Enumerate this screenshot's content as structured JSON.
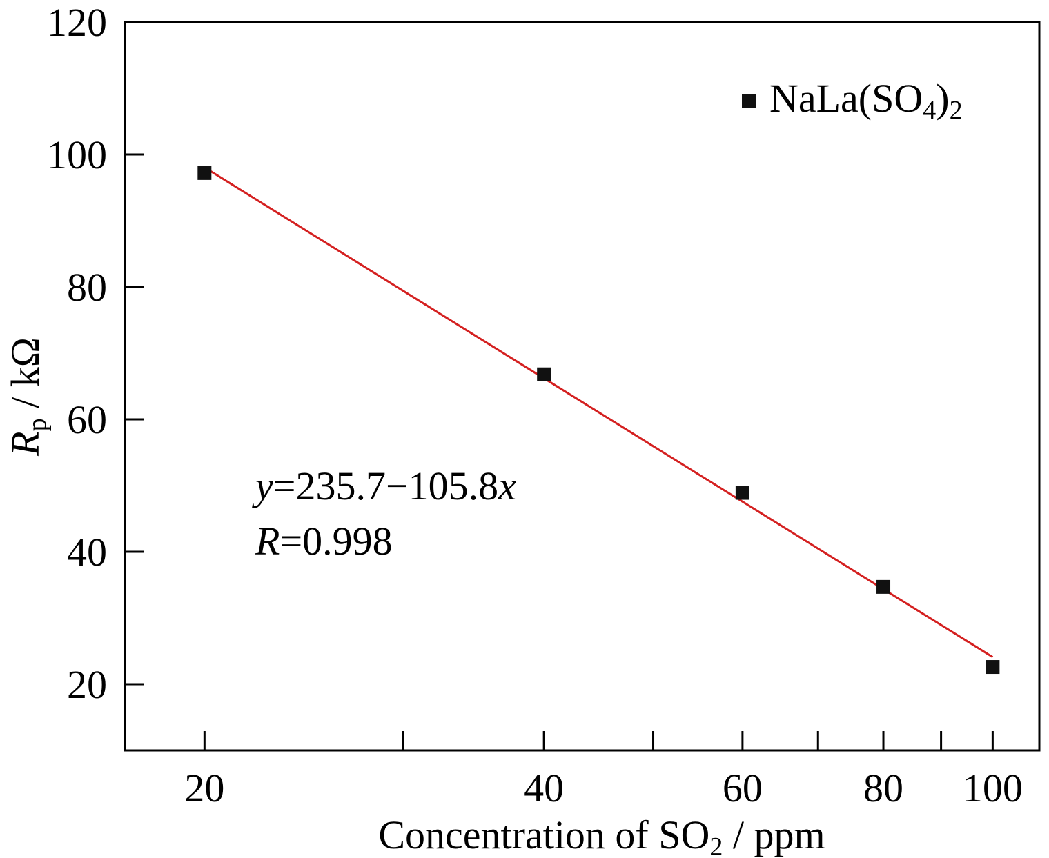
{
  "chart_data": {
    "type": "scatter",
    "x_scale": "log",
    "xlabel_main": "Concentration of SO",
    "xlabel_sub": "2",
    "xlabel_tail": " / ppm",
    "ylabel_main": "R",
    "ylabel_sub": "p",
    "ylabel_tail": " / kΩ",
    "xlim": [
      17,
      110
    ],
    "ylim": [
      10,
      120
    ],
    "x_ticks": [
      20,
      40,
      60,
      80,
      100
    ],
    "x_tick_labels": [
      "20",
      "40",
      "60",
      "80",
      "100"
    ],
    "x_minor_ticks": [
      30,
      50,
      70,
      90
    ],
    "y_ticks": [
      20,
      40,
      60,
      80,
      100,
      120
    ],
    "y_tick_labels": [
      "20",
      "40",
      "60",
      "80",
      "100",
      "120"
    ],
    "legend": {
      "position": "top-right",
      "label_main": "NaLa(SO",
      "label_sub1": "4",
      "label_mid": ")",
      "label_sub2": "2"
    },
    "series": [
      {
        "name": "NaLa(SO4)2",
        "marker": "square",
        "color": "#111111",
        "x": [
          20,
          40,
          60,
          80,
          100
        ],
        "y": [
          97.2,
          66.8,
          48.9,
          34.7,
          22.6
        ]
      }
    ],
    "fit": {
      "color": "#d42020",
      "intercept": 235.7,
      "slope": -105.8,
      "x_transform": "log10",
      "x_range": [
        20,
        100
      ]
    },
    "annotation": {
      "eq_var": "y",
      "eq_text": "=235.7−105.8",
      "eq_var2": "x",
      "r_var": "R",
      "r_text": "=0.998"
    },
    "grid": false
  }
}
